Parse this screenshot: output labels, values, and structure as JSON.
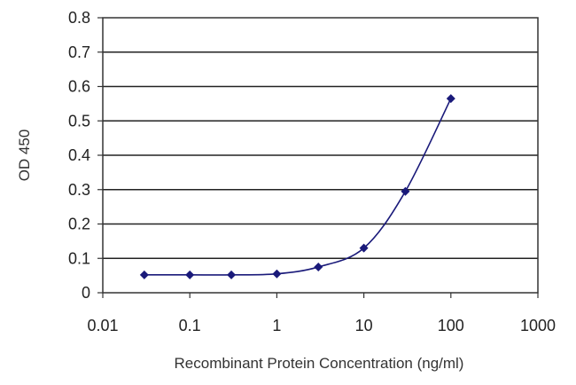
{
  "chart_data": {
    "type": "line",
    "xscale": "log",
    "xlim": [
      0.01,
      1000
    ],
    "ylim": [
      0,
      0.8
    ],
    "xticks": [
      0.01,
      0.1,
      1,
      10,
      100,
      1000
    ],
    "xtick_labels": [
      "0.01",
      "0.1",
      "1",
      "10",
      "100",
      "1000"
    ],
    "yticks": [
      0,
      0.1,
      0.2,
      0.3,
      0.4,
      0.5,
      0.6,
      0.7,
      0.8
    ],
    "ytick_labels": [
      "0",
      "0.1",
      "0.2",
      "0.3",
      "0.4",
      "0.5",
      "0.6",
      "0.7",
      "0.8"
    ],
    "xlabel": "Recombinant Protein Concentration (ng/ml)",
    "ylabel": "OD 450",
    "grid": "horizontal",
    "series": [
      {
        "x": [
          0.03,
          0.1,
          0.3,
          1,
          3,
          10,
          30,
          100
        ],
        "y": [
          0.052,
          0.052,
          0.052,
          0.055,
          0.075,
          0.13,
          0.295,
          0.565
        ],
        "color": "#1a1a7a",
        "marker": "diamond"
      }
    ]
  }
}
